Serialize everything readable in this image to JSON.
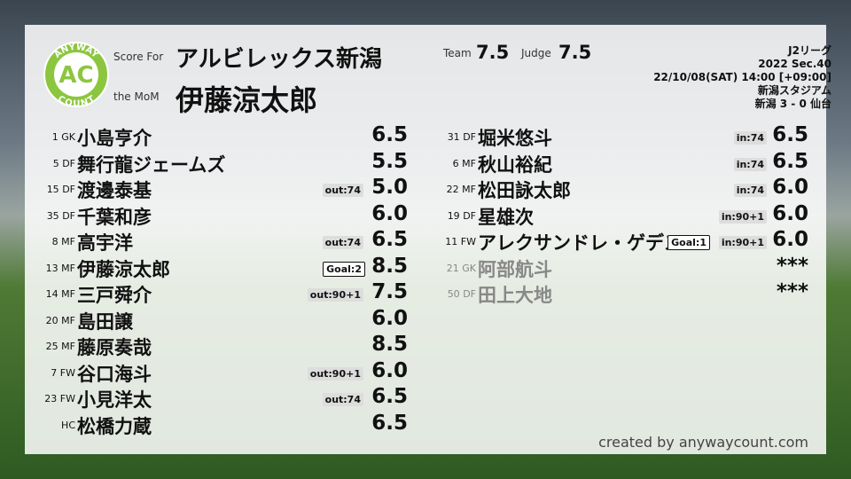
{
  "logo": {
    "top": "ANYWAY",
    "center": "AC",
    "bottom": "COUNT"
  },
  "header": {
    "score_for_label": "Score For",
    "team": "アルビレックス新潟",
    "mom_label": "the MoM",
    "mom": "伊藤涼太郎",
    "team_label": "Team",
    "team_score": "7.5",
    "judge_label": "Judge",
    "judge_score": "7.5",
    "league": "J2リーグ",
    "season": "2022 Sec.40",
    "date": "22/10/08(SAT) 14:00 [+09:00]",
    "venue": "新潟スタジアム",
    "result": "新潟 3 - 0 仙台"
  },
  "left": [
    {
      "number": "1",
      "pos": "GK",
      "name": "小島亨介",
      "score": "6.5"
    },
    {
      "number": "5",
      "pos": "DF",
      "name": "舞行龍ジェームズ",
      "score": "5.5"
    },
    {
      "number": "15",
      "pos": "DF",
      "name": "渡邊泰基",
      "sub": "out:74",
      "score": "5.0"
    },
    {
      "number": "35",
      "pos": "DF",
      "name": "千葉和彦",
      "score": "6.0"
    },
    {
      "number": "8",
      "pos": "MF",
      "name": "高宇洋",
      "sub": "out:74",
      "score": "6.5"
    },
    {
      "number": "13",
      "pos": "MF",
      "name": "伊藤涼太郎",
      "goal": "Goal:2",
      "score": "8.5"
    },
    {
      "number": "14",
      "pos": "MF",
      "name": "三戸舜介",
      "sub": "out:90+1",
      "score": "7.5"
    },
    {
      "number": "20",
      "pos": "MF",
      "name": "島田譲",
      "score": "6.0"
    },
    {
      "number": "25",
      "pos": "MF",
      "name": "藤原奏哉",
      "score": "8.5"
    },
    {
      "number": "7",
      "pos": "FW",
      "name": "谷口海斗",
      "sub": "out:90+1",
      "score": "6.0"
    },
    {
      "number": "23",
      "pos": "FW",
      "name": "小見洋太",
      "sub": "out:74",
      "score": "6.5"
    },
    {
      "pos": "HC",
      "name": "松橋力蔵",
      "score": "6.5"
    }
  ],
  "right": [
    {
      "number": "31",
      "pos": "DF",
      "name": "堀米悠斗",
      "sub": "in:74",
      "score": "6.5"
    },
    {
      "number": "6",
      "pos": "MF",
      "name": "秋山裕紀",
      "sub": "in:74",
      "score": "6.5"
    },
    {
      "number": "22",
      "pos": "MF",
      "name": "松田詠太郎",
      "sub": "in:74",
      "score": "6.0"
    },
    {
      "number": "19",
      "pos": "DF",
      "name": "星雄次",
      "sub": "in:90+1",
      "score": "6.0"
    },
    {
      "number": "11",
      "pos": "FW",
      "name": "アレクサンドレ・ゲデス",
      "goal": "Goal:1",
      "sub": "in:90+1",
      "score": "6.0"
    },
    {
      "number": "21",
      "pos": "GK",
      "name": "阿部航斗",
      "score": "***",
      "dimmed": true
    },
    {
      "number": "50",
      "pos": "DF",
      "name": "田上大地",
      "score": "***",
      "dimmed": true
    }
  ],
  "credit": "created by anywaycount.com"
}
